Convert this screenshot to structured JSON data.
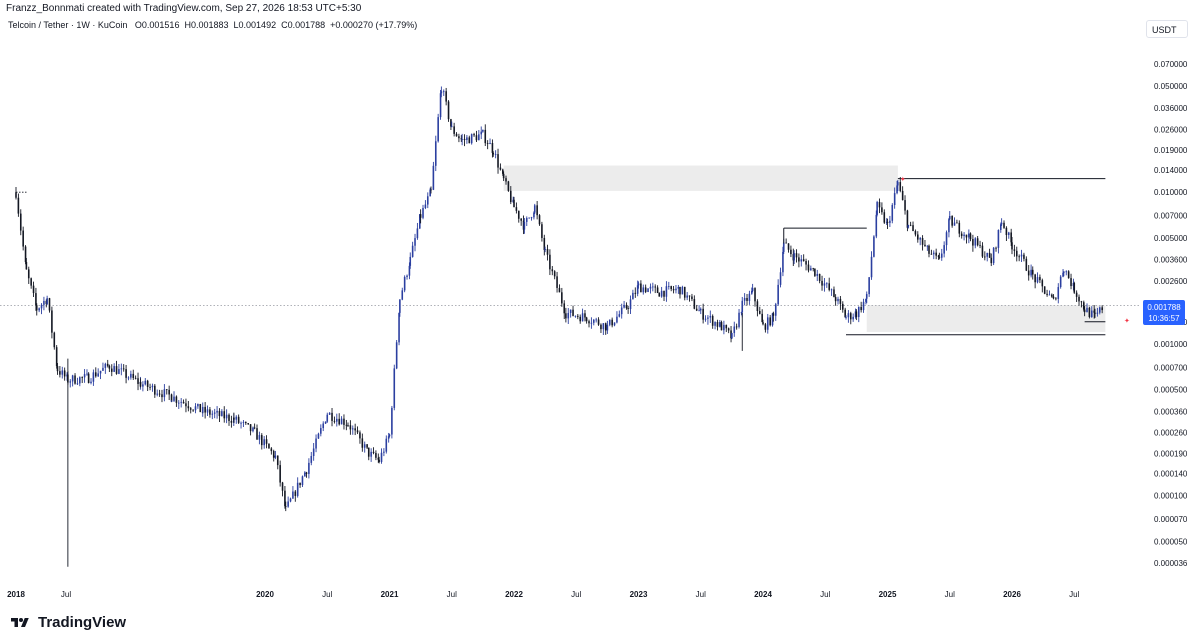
{
  "header": {
    "creator_line": "Franzz_Bonnmati created with TradingView.com, Sep 27, 2026 18:53 UTC+5:30",
    "symbol": "Telcoin / Tether · 1W · KuCoin",
    "open": "O0.001516",
    "high": "H0.001883",
    "low": "L0.001492",
    "close": "C0.001788",
    "change": "+0.000270 (+17.79%)"
  },
  "currency_button": "USDT",
  "price_label": {
    "price": "0.001788",
    "countdown": "10:36:57"
  },
  "brand": {
    "name": "TradingView"
  },
  "colors": {
    "candle": "#131722",
    "candle_bull": "#2b3fa0",
    "zone": "#ececec",
    "grid_dot": "#9598a1",
    "price_tag": "#2962ff"
  },
  "chart_data": {
    "type": "candlestick",
    "scale": "log",
    "y_ticks": [
      "0.070000",
      "0.050000",
      "0.036000",
      "0.026000",
      "0.019000",
      "0.014000",
      "0.010000",
      "0.007000",
      "0.005000",
      "0.003600",
      "0.002600",
      "0.001400",
      "0.001000",
      "0.000700",
      "0.000500",
      "0.000360",
      "0.000260",
      "0.000190",
      "0.000140",
      "0.000100",
      "0.000070",
      "0.000050",
      "0.000036"
    ],
    "x_ticks": [
      "2018",
      "Jul",
      "2020",
      "Jul",
      "2021",
      "Jul",
      "2022",
      "Jul",
      "2023",
      "Jul",
      "2024",
      "Jul",
      "2025",
      "Jul",
      "2026",
      "Jul"
    ],
    "path": [
      [
        "2018-01",
        0.01
      ],
      [
        "2018-02",
        0.003
      ],
      [
        "2018-03",
        0.0017
      ],
      [
        "2018-04",
        0.002
      ],
      [
        "2018-05",
        0.00068
      ],
      [
        "2018-06",
        0.00058
      ],
      [
        "2018-08",
        0.0006
      ],
      [
        "2018-10",
        0.00072
      ],
      [
        "2019-01",
        0.00055
      ],
      [
        "2019-04",
        0.00045
      ],
      [
        "2019-07",
        0.00036
      ],
      [
        "2019-10",
        0.00032
      ],
      [
        "2019-12",
        0.00026
      ],
      [
        "2020-02",
        0.00018
      ],
      [
        "2020-03",
        8e-05
      ],
      [
        "2020-05",
        0.00015
      ],
      [
        "2020-07",
        0.00035
      ],
      [
        "2020-09",
        0.0003
      ],
      [
        "2020-11",
        0.00019
      ],
      [
        "2020-12",
        0.00017
      ],
      [
        "2021-01",
        0.00025
      ],
      [
        "2021-02",
        0.002
      ],
      [
        "2021-03",
        0.0036
      ],
      [
        "2021-04",
        0.007
      ],
      [
        "2021-05",
        0.01
      ],
      [
        "2021-06",
        0.05
      ],
      [
        "2021-07",
        0.026
      ],
      [
        "2021-08",
        0.022
      ],
      [
        "2021-10",
        0.024
      ],
      [
        "2021-11",
        0.019
      ],
      [
        "2021-12",
        0.012
      ],
      [
        "2022-01",
        0.008
      ],
      [
        "2022-02",
        0.006
      ],
      [
        "2022-03",
        0.008
      ],
      [
        "2022-04",
        0.004
      ],
      [
        "2022-06",
        0.0016
      ],
      [
        "2022-08",
        0.0015
      ],
      [
        "2022-10",
        0.0013
      ],
      [
        "2022-12",
        0.0018
      ],
      [
        "2023-01",
        0.0024
      ],
      [
        "2023-03",
        0.0022
      ],
      [
        "2023-05",
        0.0023
      ],
      [
        "2023-07",
        0.0016
      ],
      [
        "2023-09",
        0.0013
      ],
      [
        "2023-10",
        0.0011
      ],
      [
        "2023-11",
        0.0018
      ],
      [
        "2023-12",
        0.0022
      ],
      [
        "2024-01",
        0.0013
      ],
      [
        "2024-02",
        0.0015
      ],
      [
        "2024-03",
        0.0045
      ],
      [
        "2024-04",
        0.0038
      ],
      [
        "2024-06",
        0.003
      ],
      [
        "2024-08",
        0.002
      ],
      [
        "2024-09",
        0.0015
      ],
      [
        "2024-10",
        0.0016
      ],
      [
        "2024-11",
        0.002
      ],
      [
        "2024-12",
        0.008
      ],
      [
        "2025-01",
        0.006
      ],
      [
        "2025-02",
        0.0115
      ],
      [
        "2025-03",
        0.006
      ],
      [
        "2025-05",
        0.004
      ],
      [
        "2025-06",
        0.0035
      ],
      [
        "2025-07",
        0.0065
      ],
      [
        "2025-09",
        0.005
      ],
      [
        "2025-11",
        0.0035
      ],
      [
        "2025-12",
        0.0065
      ],
      [
        "2026-01",
        0.0045
      ],
      [
        "2026-03",
        0.0028
      ],
      [
        "2026-05",
        0.0019
      ],
      [
        "2026-06",
        0.0032
      ],
      [
        "2026-07",
        0.0023
      ],
      [
        "2026-08",
        0.0017
      ],
      [
        "2026-09",
        0.0015
      ],
      [
        "2026-09-27",
        0.001788
      ]
    ],
    "zones": [
      {
        "from": "2021-12",
        "to": "2025-02",
        "low": 0.0102,
        "high": 0.015
      },
      {
        "from": "2024-11",
        "to": "2026-10",
        "low": 0.0012,
        "high": 0.0018
      }
    ],
    "levels": [
      {
        "from": "2025-02",
        "to": "2026-10",
        "price": 0.0123
      },
      {
        "from": "2024-03",
        "to": "2024-11",
        "price": 0.0058
      },
      {
        "from": "2024-09",
        "to": "2026-10",
        "price": 0.00115
      },
      {
        "from": "2026-08",
        "to": "2026-10",
        "price": 0.0014
      }
    ],
    "current_price": 0.001788
  }
}
